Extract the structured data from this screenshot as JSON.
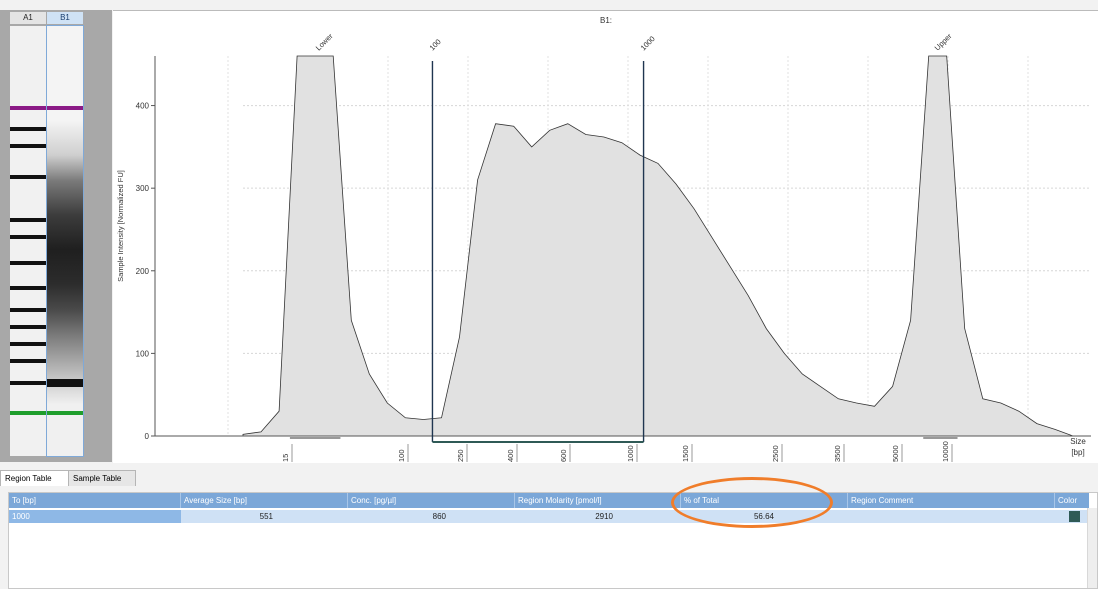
{
  "gel": {
    "lane_a": "A1",
    "lane_b": "B1",
    "ladder_bands": [
      0.19,
      0.24,
      0.28,
      0.35,
      0.45,
      0.49,
      0.55,
      0.61,
      0.66,
      0.7,
      0.74,
      0.78,
      0.83,
      0.9
    ],
    "marker_colors": {
      "upper": "#8b1a86",
      "lower": "#1f9e2c"
    },
    "upper_marker_pos": 0.19,
    "lower_marker_pos": 0.9,
    "sample_lower_band_pos": 0.83
  },
  "chart_data": {
    "type": "area",
    "title": "B1:",
    "ylabel": "Sample Intensity [Normalized FU]",
    "xlabel": "Size",
    "xunit": "[bp]",
    "ylim": [
      0,
      460
    ],
    "yticks": [
      0,
      100,
      200,
      300,
      400
    ],
    "xticks": [
      "15",
      "100",
      "250",
      "400",
      "600",
      "1000",
      "1500",
      "2500",
      "3500",
      "5000",
      "10000"
    ],
    "grid": true,
    "fill_color": "#e1e1e1",
    "peak_labels": [
      "Lower",
      "100",
      "1000",
      "Upper"
    ],
    "region": {
      "from": "100",
      "to": "1000"
    },
    "series": [
      {
        "x": [
          0,
          1,
          2,
          3,
          4,
          5,
          6,
          7,
          8,
          9,
          10,
          11,
          12,
          13,
          14,
          15,
          16,
          17,
          18,
          19,
          20,
          21,
          22,
          23,
          24,
          25,
          26,
          27,
          28,
          29,
          30,
          31,
          32,
          33,
          34,
          35,
          36,
          37,
          38,
          39,
          40,
          41,
          42,
          43,
          44,
          45,
          46
        ],
        "y": [
          2,
          5,
          30,
          460,
          460,
          460,
          140,
          75,
          40,
          22,
          20,
          22,
          120,
          310,
          378,
          375,
          350,
          370,
          378,
          365,
          362,
          355,
          340,
          330,
          305,
          275,
          240,
          205,
          170,
          130,
          100,
          75,
          60,
          45,
          40,
          36,
          60,
          140,
          460,
          460,
          130,
          45,
          40,
          30,
          15,
          8,
          0
        ]
      }
    ]
  },
  "tabs": {
    "region": "Region Table",
    "sample": "Sample Table"
  },
  "table": {
    "headers": [
      "To [bp]",
      "Average Size [bp]",
      "Conc. [pg/µl]",
      "Region Molarity [pmol/l]",
      "% of Total",
      "Region Comment",
      "Color"
    ],
    "row": [
      "1000",
      "551",
      "860",
      "2910",
      "56.64",
      ""
    ],
    "row_color": "#2f5a56"
  },
  "annotation_color": "#f07d2a"
}
